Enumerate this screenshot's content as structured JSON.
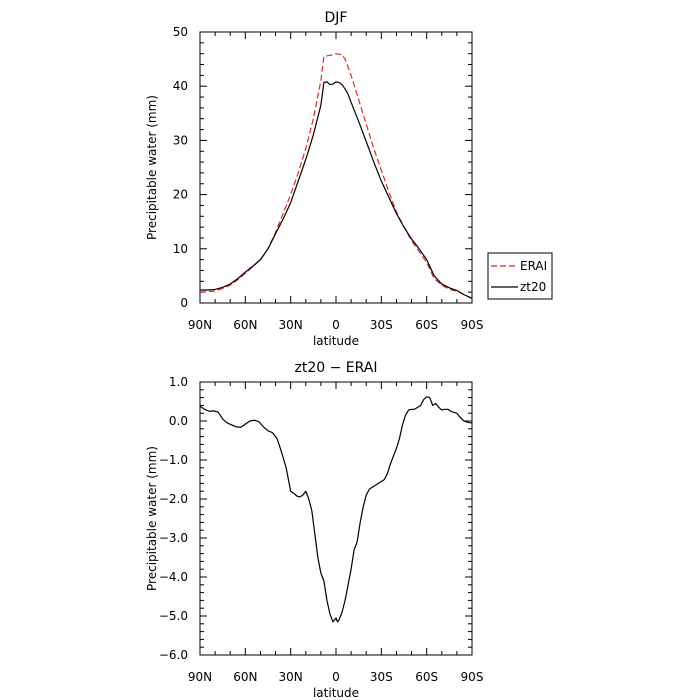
{
  "chart_data": [
    {
      "type": "line",
      "title": "DJF",
      "xlabel": "latitude",
      "ylabel": "Precipitable water (mm)",
      "xlim": [
        90,
        -90
      ],
      "ylim": [
        0,
        50
      ],
      "xticks": [
        90,
        60,
        30,
        0,
        -30,
        -60,
        -90
      ],
      "xtick_labels": [
        "90N",
        "60N",
        "30N",
        "0",
        "30S",
        "60S",
        "90S"
      ],
      "yticks": [
        0,
        10,
        20,
        30,
        40,
        50
      ],
      "ytick_labels": [
        "0",
        "10",
        "20",
        "30",
        "40",
        "50"
      ],
      "legend": "right",
      "series": [
        {
          "name": "ERAI",
          "color": "#e8261b",
          "dash": "dashed",
          "x": [
            90,
            85,
            80,
            75,
            70,
            65,
            60,
            55,
            50,
            45,
            40,
            35,
            30,
            25,
            20,
            15,
            10,
            8,
            6,
            4,
            2,
            0,
            -2,
            -4,
            -6,
            -8,
            -10,
            -15,
            -20,
            -25,
            -30,
            -35,
            -40,
            -45,
            -50,
            -55,
            -60,
            -65,
            -70,
            -75,
            -80,
            -85,
            -90
          ],
          "values": [
            2.0,
            2.1,
            2.2,
            2.7,
            3.3,
            4.3,
            5.5,
            6.7,
            8.0,
            10.0,
            13.0,
            16.5,
            20.0,
            24.0,
            28.5,
            34.0,
            41.0,
            45.5,
            45.6,
            45.7,
            45.8,
            46.0,
            45.9,
            45.8,
            45.0,
            43.5,
            42.0,
            37.5,
            33.0,
            28.5,
            24.5,
            20.5,
            16.8,
            14.0,
            11.5,
            9.5,
            7.5,
            4.5,
            3.3,
            2.5,
            2.2,
            1.5,
            0.8
          ]
        },
        {
          "name": "zt20",
          "color": "#000000",
          "dash": "solid",
          "x": [
            90,
            85,
            80,
            75,
            70,
            65,
            60,
            55,
            50,
            45,
            40,
            35,
            30,
            25,
            20,
            15,
            10,
            8,
            6,
            4,
            2,
            0,
            -2,
            -4,
            -6,
            -8,
            -10,
            -15,
            -20,
            -25,
            -30,
            -35,
            -40,
            -45,
            -50,
            -55,
            -60,
            -65,
            -70,
            -75,
            -80,
            -85,
            -90
          ],
          "values": [
            2.4,
            2.4,
            2.5,
            2.9,
            3.5,
            4.5,
            5.7,
            6.8,
            8.0,
            10.0,
            12.8,
            15.5,
            18.5,
            22.5,
            26.5,
            31.0,
            36.5,
            40.7,
            40.8,
            40.3,
            40.4,
            40.8,
            40.7,
            40.3,
            39.5,
            38.5,
            37.0,
            33.5,
            29.8,
            26.0,
            22.5,
            19.5,
            16.5,
            14.0,
            11.8,
            10.0,
            8.0,
            5.0,
            3.5,
            2.8,
            2.3,
            1.5,
            0.9
          ]
        }
      ]
    },
    {
      "type": "line",
      "title": "zt20 − ERAI",
      "xlabel": "latitude",
      "ylabel": "Precipitable water (mm)",
      "xlim": [
        90,
        -90
      ],
      "ylim": [
        -6.0,
        1.0
      ],
      "xticks": [
        90,
        60,
        30,
        0,
        -30,
        -60,
        -90
      ],
      "xtick_labels": [
        "90N",
        "60N",
        "30N",
        "0",
        "30S",
        "60S",
        "90S"
      ],
      "yticks": [
        1.0,
        0.0,
        -1.0,
        -2.0,
        -3.0,
        -4.0,
        -5.0,
        -6.0
      ],
      "ytick_labels": [
        "1.0",
        "0.0",
        "−1.0",
        "−2.0",
        "−3.0",
        "−4.0",
        "−5.0",
        "−6.0"
      ],
      "series": [
        {
          "color": "#000000",
          "dash": "solid",
          "x": [
            90,
            87,
            84,
            81,
            78,
            75,
            72,
            69,
            66,
            63,
            60,
            57,
            54,
            51,
            48,
            45,
            42,
            39,
            36,
            33,
            30,
            28,
            26,
            24,
            22,
            20,
            18,
            16,
            14,
            12,
            10,
            8,
            6,
            4,
            2,
            1,
            0,
            -1,
            -2,
            -4,
            -6,
            -8,
            -10,
            -12,
            -14,
            -16,
            -18,
            -20,
            -22,
            -24,
            -26,
            -28,
            -30,
            -32,
            -34,
            -36,
            -38,
            -40,
            -42,
            -44,
            -46,
            -48,
            -50,
            -52,
            -54,
            -56,
            -58,
            -60,
            -62,
            -64,
            -66,
            -68,
            -70,
            -72,
            -74,
            -76,
            -78,
            -80,
            -82,
            -84,
            -86,
            -88,
            -90
          ],
          "values": [
            0.38,
            0.3,
            0.25,
            0.26,
            0.23,
            0.05,
            -0.05,
            -0.1,
            -0.15,
            -0.16,
            -0.08,
            0.0,
            0.02,
            -0.02,
            -0.15,
            -0.25,
            -0.3,
            -0.45,
            -0.8,
            -1.2,
            -1.8,
            -1.85,
            -1.92,
            -1.95,
            -1.9,
            -1.8,
            -2.0,
            -2.3,
            -2.9,
            -3.5,
            -3.9,
            -4.1,
            -4.6,
            -4.95,
            -5.15,
            -5.1,
            -5.05,
            -5.15,
            -5.1,
            -4.9,
            -4.6,
            -4.2,
            -3.8,
            -3.3,
            -3.1,
            -2.6,
            -2.2,
            -1.9,
            -1.75,
            -1.7,
            -1.65,
            -1.6,
            -1.55,
            -1.5,
            -1.35,
            -1.1,
            -0.9,
            -0.7,
            -0.45,
            -0.1,
            0.15,
            0.28,
            0.3,
            0.3,
            0.35,
            0.4,
            0.55,
            0.62,
            0.6,
            0.4,
            0.45,
            0.35,
            0.28,
            0.3,
            0.3,
            0.25,
            0.22,
            0.2,
            0.1,
            0.02,
            -0.02,
            -0.04,
            -0.05
          ]
        }
      ]
    }
  ]
}
